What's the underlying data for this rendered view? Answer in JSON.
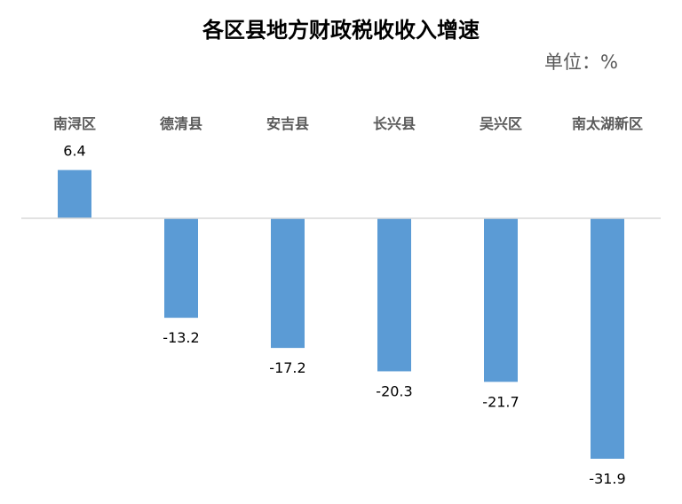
{
  "title": "各区县地方财政税收收入增速",
  "unit_label": "单位：%",
  "colors": {
    "bar": "#5B9BD5",
    "baseline": "#D9D9D9",
    "category_text": "#595959"
  },
  "chart_data": {
    "type": "bar",
    "title": "各区县地方财政税收收入增速",
    "categories": [
      "南浔区",
      "德清县",
      "安吉县",
      "长兴县",
      "吴兴区",
      "南太湖新区"
    ],
    "values": [
      6.4,
      -13.2,
      -17.2,
      -20.3,
      -21.7,
      -31.9
    ],
    "value_labels": [
      "6.4",
      "-13.2",
      "-17.2",
      "-20.3",
      "-21.7",
      "-31.9"
    ],
    "category_position": "top",
    "ylim": [
      -35,
      10
    ],
    "grid": false,
    "legend": "none"
  }
}
